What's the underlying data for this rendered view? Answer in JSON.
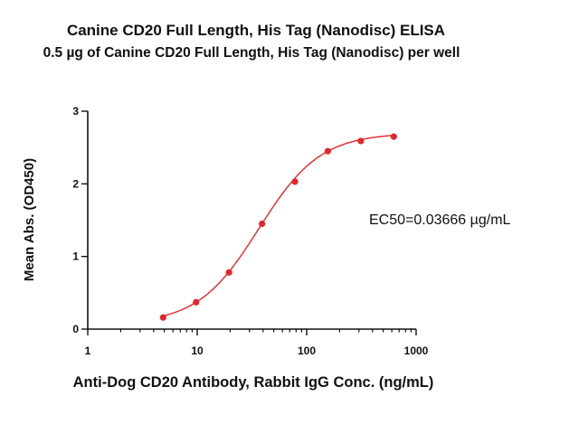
{
  "chart_data": {
    "type": "scatter",
    "title": "Canine CD20 Full Length, His Tag (Nanodisc) ELISA",
    "subtitle": "0.5 µg of Canine CD20 Full Length, His Tag (Nanodisc) per well",
    "xlabel": "Anti-Dog CD20 Antibody, Rabbit IgG Conc. (ng/mL)",
    "ylabel": "Mean Abs. (OD450)",
    "x_scale": "log",
    "xlim": [
      1,
      1000
    ],
    "ylim": [
      0,
      3
    ],
    "x_ticks": [
      "1",
      "10",
      "100",
      "1000"
    ],
    "x_tick_values": [
      1,
      10,
      100,
      1000
    ],
    "y_ticks": [
      "0",
      "1",
      "2",
      "3"
    ],
    "y_tick_values": [
      0,
      1,
      2,
      3
    ],
    "annotation": "EC50=0.03666 µg/mL",
    "series": [
      {
        "x": [
          4.88,
          9.77,
          19.5,
          39.1,
          78.1,
          156,
          312.5,
          625
        ],
        "y": [
          0.16,
          0.37,
          0.78,
          1.45,
          2.03,
          2.45,
          2.59,
          2.65
        ],
        "color": "#e3262b"
      }
    ],
    "fit_curve": {
      "bottom": 0.07,
      "top": 2.7,
      "ec50": 36.66,
      "hill": 1.55,
      "x_range": [
        4.88,
        625
      ],
      "color": "#e3262b"
    },
    "grid": false,
    "legend": "none"
  }
}
